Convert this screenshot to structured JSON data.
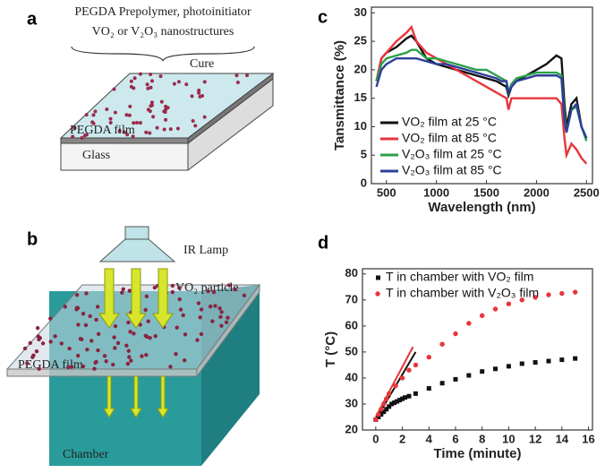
{
  "panels": {
    "a": "a",
    "b": "b",
    "c": "c",
    "d": "d"
  },
  "diagram_a": {
    "line1": "PEGDA Prepolymer, photoinitiator",
    "line2": "VO₂ or V₂O₃ nanostructures",
    "step": "Cure",
    "film": "PEGDA film",
    "substrate": "Glass"
  },
  "diagram_b": {
    "lamp": "IR Lamp",
    "particle": "VO₂ particle",
    "film": "PEGDA film",
    "chamber": "Chamber"
  },
  "chart_data": [
    {
      "type": "line",
      "xlabel": "Wavelength (nm)",
      "ylabel": "Tansmittance (%)",
      "x": [
        400,
        450,
        500,
        600,
        700,
        750,
        800,
        900,
        1000,
        1100,
        1200,
        1300,
        1400,
        1500,
        1600,
        1650,
        1700,
        1720,
        1750,
        1800,
        1900,
        2000,
        2100,
        2200,
        2250,
        2280,
        2300,
        2350,
        2400,
        2450,
        2500
      ],
      "series": [
        {
          "name": "VO₂ film at 25 °C",
          "color": "#111111",
          "values": [
            18,
            22,
            23,
            24,
            25.5,
            26,
            25,
            22,
            21,
            20.5,
            20,
            19.5,
            19,
            18.5,
            18,
            17.5,
            17,
            15.5,
            17,
            18,
            19,
            20,
            21,
            22.5,
            22,
            14,
            10,
            14,
            15,
            10,
            8
          ]
        },
        {
          "name": "VO₂ film at 85 °C",
          "color": "#e8353b",
          "values": [
            18,
            22,
            23,
            25,
            26.5,
            27.5,
            25,
            23,
            22,
            21,
            20,
            19,
            18,
            17,
            16,
            15.5,
            15,
            13,
            15,
            15,
            15,
            15,
            15,
            15,
            14,
            8,
            5,
            7,
            6,
            4.5,
            3.5
          ]
        },
        {
          "name": "V₂O₃ film at 25 °C",
          "color": "#2ca14a",
          "values": [
            18,
            21,
            22,
            22.5,
            23,
            23.5,
            23.5,
            22,
            22,
            21.5,
            21,
            20.5,
            20,
            20,
            19,
            18.5,
            18,
            16,
            17.5,
            18.5,
            19,
            19.5,
            19.5,
            19.5,
            19,
            12,
            9,
            13,
            13.5,
            10,
            7.5
          ]
        },
        {
          "name": "V₂O₃ film at 85 °C",
          "color": "#2f3f9c",
          "values": [
            17,
            20,
            21,
            22,
            22,
            22,
            22,
            21.5,
            21,
            21,
            20.5,
            20,
            19.5,
            19,
            18.5,
            18,
            18,
            16,
            17,
            18,
            18.5,
            19,
            19,
            19,
            18.5,
            11,
            9,
            13,
            14,
            10,
            8
          ]
        }
      ],
      "xlim": [
        350,
        2560
      ],
      "ylim": [
        0,
        31
      ],
      "xticks": [
        500,
        1000,
        1500,
        2000,
        2500
      ],
      "yticks": [
        0,
        5,
        10,
        15,
        20,
        25,
        30
      ],
      "legend": "lower left"
    },
    {
      "type": "scatter",
      "xlabel": "Time (minute)",
      "ylabel": "T (°C)",
      "series": [
        {
          "name": "T in chamber with VO₂ film",
          "color": "#111111",
          "marker": "square",
          "x": [
            0,
            0.2,
            0.4,
            0.6,
            0.8,
            1,
            1.2,
            1.4,
            1.6,
            1.8,
            2,
            2.2,
            2.5,
            3,
            4,
            5,
            6,
            7,
            8,
            9,
            10,
            11,
            12,
            13,
            14,
            15
          ],
          "values": [
            24,
            25,
            26,
            27,
            28,
            29,
            30,
            30.5,
            31,
            31.5,
            32,
            32.5,
            33,
            34,
            36,
            38,
            39.5,
            41,
            42.5,
            43.5,
            44.5,
            45.5,
            46,
            46.5,
            47,
            47.5
          ]
        },
        {
          "name": "T in chamber with V₂O₃ film",
          "color": "#e8353b",
          "marker": "circle",
          "x": [
            0,
            0.2,
            0.4,
            0.6,
            0.8,
            1,
            1.5,
            2,
            2.5,
            3,
            4,
            5,
            6,
            7,
            8,
            9,
            10,
            11,
            12,
            13,
            14,
            15
          ],
          "values": [
            24,
            26,
            28,
            30,
            32,
            34,
            37,
            40,
            43,
            45,
            48,
            53,
            57,
            61,
            64,
            66.5,
            68.5,
            70,
            71,
            72,
            72.5,
            73
          ]
        }
      ],
      "lines": [
        {
          "color": "#111111",
          "x": [
            0,
            3
          ],
          "values": [
            24,
            50
          ]
        },
        {
          "color": "#e8353b",
          "x": [
            0,
            2.8
          ],
          "values": [
            25,
            52
          ]
        }
      ],
      "xlim": [
        -1,
        16.3
      ],
      "ylim": [
        20,
        82
      ],
      "xticks": [
        0,
        2,
        4,
        6,
        8,
        10,
        12,
        14,
        16
      ],
      "yticks": [
        20,
        30,
        40,
        50,
        60,
        70,
        80
      ],
      "legend": "upper left"
    }
  ]
}
